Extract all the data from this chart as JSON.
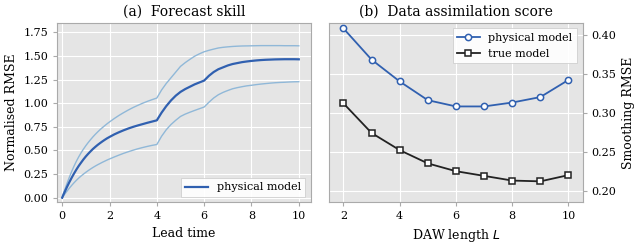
{
  "title_left": "(a)  Forecast skill",
  "title_right": "(b)  Data assimilation score",
  "xlabel_left": "Lead time",
  "xlabel_right": "DAW length $L$",
  "ylabel_left": "Normalised RMSE",
  "ylabel_right": "Smoothing RMSE",
  "legend_left": "physical model",
  "legend_right_blue": "physical model",
  "legend_right_black": "true model",
  "left_xlim": [
    -0.2,
    10.5
  ],
  "left_ylim": [
    -0.05,
    1.85
  ],
  "left_yticks": [
    0.0,
    0.25,
    0.5,
    0.75,
    1.0,
    1.25,
    1.5,
    1.75
  ],
  "left_xticks": [
    0,
    2,
    4,
    6,
    8,
    10
  ],
  "right_xlim": [
    1.5,
    10.5
  ],
  "right_ylim": [
    0.185,
    0.415
  ],
  "right_yticks": [
    0.2,
    0.25,
    0.3,
    0.35,
    0.4
  ],
  "right_xticks": [
    2,
    4,
    6,
    8,
    10
  ],
  "forecast_x": [
    0.0,
    0.05,
    0.1,
    0.15,
    0.2,
    0.3,
    0.4,
    0.5,
    0.6,
    0.7,
    0.8,
    0.9,
    1.0,
    1.1,
    1.2,
    1.3,
    1.4,
    1.5,
    1.6,
    1.7,
    1.8,
    1.9,
    2.0,
    2.2,
    2.4,
    2.6,
    2.8,
    3.0,
    3.2,
    3.4,
    3.6,
    3.8,
    4.0,
    4.2,
    4.4,
    4.6,
    4.8,
    5.0,
    5.2,
    5.4,
    5.6,
    5.8,
    6.0,
    6.2,
    6.4,
    6.6,
    6.8,
    7.0,
    7.2,
    7.4,
    7.6,
    7.8,
    8.0,
    8.2,
    8.4,
    8.6,
    8.8,
    9.0,
    9.2,
    9.4,
    9.6,
    9.8,
    10.0
  ],
  "forecast_mean": [
    0.0,
    0.03,
    0.058,
    0.085,
    0.112,
    0.163,
    0.211,
    0.256,
    0.298,
    0.337,
    0.372,
    0.406,
    0.437,
    0.465,
    0.491,
    0.516,
    0.538,
    0.559,
    0.578,
    0.596,
    0.613,
    0.629,
    0.643,
    0.67,
    0.693,
    0.714,
    0.733,
    0.75,
    0.765,
    0.779,
    0.793,
    0.806,
    0.819,
    0.9,
    0.97,
    1.03,
    1.08,
    1.12,
    1.15,
    1.175,
    1.2,
    1.22,
    1.24,
    1.29,
    1.33,
    1.36,
    1.38,
    1.4,
    1.415,
    1.425,
    1.435,
    1.442,
    1.448,
    1.453,
    1.457,
    1.46,
    1.462,
    1.464,
    1.465,
    1.466,
    1.466,
    1.466,
    1.465
  ],
  "forecast_upper": [
    0.0,
    0.04,
    0.078,
    0.114,
    0.149,
    0.215,
    0.277,
    0.334,
    0.386,
    0.433,
    0.476,
    0.515,
    0.551,
    0.584,
    0.615,
    0.644,
    0.671,
    0.696,
    0.72,
    0.742,
    0.763,
    0.783,
    0.802,
    0.838,
    0.871,
    0.901,
    0.929,
    0.955,
    0.978,
    1.0,
    1.02,
    1.038,
    1.055,
    1.14,
    1.21,
    1.27,
    1.33,
    1.39,
    1.43,
    1.465,
    1.498,
    1.523,
    1.545,
    1.56,
    1.573,
    1.585,
    1.592,
    1.597,
    1.601,
    1.604,
    1.606,
    1.607,
    1.608,
    1.609,
    1.61,
    1.61,
    1.61,
    1.61,
    1.61,
    1.609,
    1.609,
    1.609,
    1.608
  ],
  "forecast_lower": [
    0.0,
    0.018,
    0.035,
    0.052,
    0.068,
    0.1,
    0.13,
    0.158,
    0.184,
    0.208,
    0.23,
    0.25,
    0.269,
    0.287,
    0.304,
    0.32,
    0.335,
    0.349,
    0.362,
    0.375,
    0.387,
    0.399,
    0.41,
    0.431,
    0.451,
    0.47,
    0.487,
    0.503,
    0.518,
    0.531,
    0.543,
    0.554,
    0.563,
    0.65,
    0.72,
    0.775,
    0.82,
    0.86,
    0.885,
    0.905,
    0.924,
    0.942,
    0.96,
    1.01,
    1.055,
    1.09,
    1.115,
    1.135,
    1.153,
    1.165,
    1.175,
    1.184,
    1.19,
    1.197,
    1.203,
    1.208,
    1.213,
    1.217,
    1.22,
    1.222,
    1.225,
    1.227,
    1.228
  ],
  "da_x": [
    2,
    3,
    4,
    5,
    6,
    7,
    8,
    9,
    10
  ],
  "da_physical": [
    0.408,
    0.368,
    0.34,
    0.316,
    0.308,
    0.308,
    0.313,
    0.32,
    0.342
  ],
  "da_true": [
    0.312,
    0.274,
    0.252,
    0.235,
    0.225,
    0.219,
    0.213,
    0.212,
    0.22
  ],
  "color_blue_dark": "#3060b0",
  "color_blue_light": "#90b8d8",
  "color_black": "#222222",
  "background_color": "#e5e5e5",
  "grid_color": "#ffffff",
  "spine_color": "#aaaaaa"
}
